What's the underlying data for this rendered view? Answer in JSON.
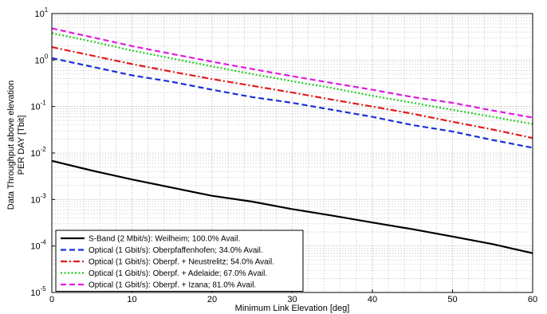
{
  "chart_data": {
    "type": "line",
    "xlabel": "Minimum Link Elevation [deg]",
    "ylabel_line1": "Data Throughput above elevation",
    "ylabel_line2": "PER DAY [Tbit]",
    "xlim": [
      0,
      60
    ],
    "ylim": [
      1e-05,
      10
    ],
    "yscale": "log",
    "grid": true,
    "legend_position": "bottom-left",
    "x_ticks": [
      "0",
      "10",
      "20",
      "30",
      "40",
      "50",
      "60"
    ],
    "y_ticks": [
      {
        "base": "10",
        "exp": "-5"
      },
      {
        "base": "10",
        "exp": "-4"
      },
      {
        "base": "10",
        "exp": "-3"
      },
      {
        "base": "10",
        "exp": "-2"
      },
      {
        "base": "10",
        "exp": "-1"
      },
      {
        "base": "10",
        "exp": "0"
      },
      {
        "base": "10",
        "exp": "1"
      }
    ],
    "series": [
      {
        "name": "S-Band (2 Mbit/s): Weilheim; 100.0% Avail.",
        "color": "#000000",
        "dash": "solid",
        "x": [
          0,
          5,
          10,
          15,
          20,
          25,
          30,
          35,
          40,
          45,
          50,
          55,
          60
        ],
        "y": [
          0.0068,
          0.0042,
          0.0027,
          0.0018,
          0.0012,
          0.0009,
          0.00062,
          0.00045,
          0.00032,
          0.00023,
          0.00016,
          0.00011,
          7e-05
        ]
      },
      {
        "name": "Optical (1 Gbit/s): Oberpfaffenhofen; 34.0% Avail.",
        "color": "#1a2fd6",
        "dash": "dashed",
        "x": [
          0,
          5,
          10,
          15,
          20,
          25,
          30,
          35,
          40,
          45,
          50,
          55,
          60
        ],
        "y": [
          1.1,
          0.72,
          0.47,
          0.34,
          0.23,
          0.16,
          0.12,
          0.085,
          0.06,
          0.04,
          0.029,
          0.019,
          0.013
        ]
      },
      {
        "name": "Optical (1 Gbit/s): Oberpf. + Neustrelitz; 54.0% Avail.",
        "color": "#e01b1b",
        "dash": "dashdot",
        "x": [
          0,
          5,
          10,
          15,
          20,
          25,
          30,
          35,
          40,
          45,
          50,
          55,
          60
        ],
        "y": [
          1.9,
          1.25,
          0.82,
          0.56,
          0.39,
          0.28,
          0.2,
          0.14,
          0.1,
          0.07,
          0.047,
          0.032,
          0.021
        ]
      },
      {
        "name": "Optical (1 Gbit/s): Oberpf. + Adelaide; 67.0% Avail.",
        "color": "#1fcc1f",
        "dash": "dotted",
        "x": [
          0,
          5,
          10,
          15,
          20,
          25,
          30,
          35,
          40,
          45,
          50,
          55,
          60
        ],
        "y": [
          3.8,
          2.5,
          1.6,
          1.08,
          0.73,
          0.5,
          0.35,
          0.25,
          0.17,
          0.12,
          0.085,
          0.06,
          0.042
        ]
      },
      {
        "name": "Optical (1 Gbit/s): Oberpf. + Izana; 81.0% Avail.",
        "color": "#e01be0",
        "dash": "dashed",
        "x": [
          0,
          5,
          10,
          15,
          20,
          25,
          30,
          35,
          40,
          45,
          50,
          55,
          60
        ],
        "y": [
          4.8,
          3.1,
          2.0,
          1.35,
          0.92,
          0.64,
          0.45,
          0.32,
          0.23,
          0.16,
          0.12,
          0.082,
          0.058
        ]
      }
    ]
  }
}
